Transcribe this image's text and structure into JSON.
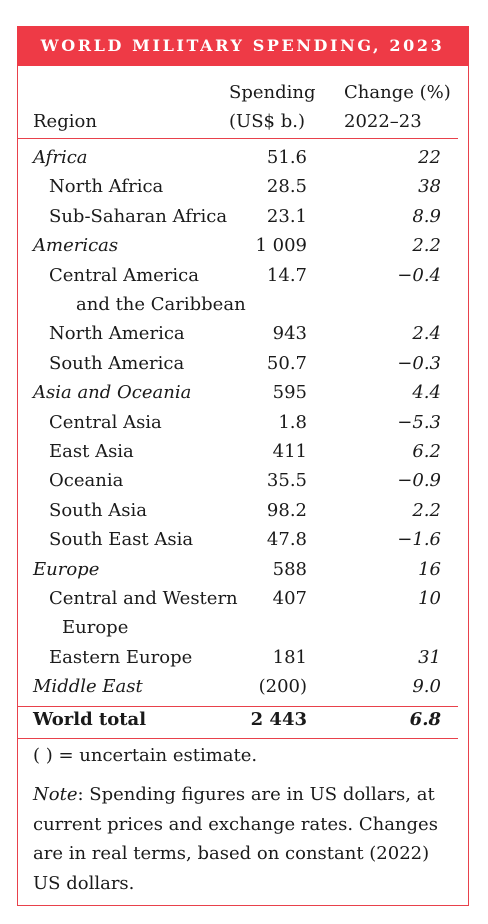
{
  "title": "WORLD MILITARY SPENDING, 2023",
  "headers": {
    "region": "Region",
    "spending_line1": "Spending",
    "spending_line2": "(US$ b.)",
    "change_line1": "Change (%)",
    "change_line2": "2022–23"
  },
  "rows": [
    {
      "label": "Africa",
      "spending": "51.6",
      "change": "22",
      "level": 0
    },
    {
      "label": "North Africa",
      "spending": "28.5",
      "change": "38",
      "level": 1
    },
    {
      "label": "Sub-Saharan Africa",
      "spending": "23.1",
      "change": "8.9",
      "level": 1
    },
    {
      "label": "Americas",
      "spending": "1 009",
      "change": "2.2",
      "level": 0
    },
    {
      "label": "Central America",
      "label2": "and the Caribbean",
      "spending": "14.7",
      "change": "−0.4",
      "level": 1
    },
    {
      "label": "North America",
      "spending": "943",
      "change": "2.4",
      "level": 1
    },
    {
      "label": "South America",
      "spending": "50.7",
      "change": "−0.3",
      "level": 1
    },
    {
      "label": "Asia and Oceania",
      "spending": "595",
      "change": "4.4",
      "level": 0
    },
    {
      "label": "Central Asia",
      "spending": "1.8",
      "change": "−5.3",
      "level": 1
    },
    {
      "label": "East Asia",
      "spending": "411",
      "change": "6.2",
      "level": 1
    },
    {
      "label": "Oceania",
      "spending": "35.5",
      "change": "−0.9",
      "level": 1
    },
    {
      "label": "South Asia",
      "spending": "98.2",
      "change": "2.2",
      "level": 1
    },
    {
      "label": "South East Asia",
      "spending": "47.8",
      "change": "−1.6",
      "level": 1
    },
    {
      "label": "Europe",
      "spending": "588",
      "change": "16",
      "level": 0
    },
    {
      "label": "Central and Western",
      "label2": "Europe",
      "spending": "407",
      "change": "10",
      "level": 1
    },
    {
      "label": "Eastern Europe",
      "spending": "181",
      "change": "31",
      "level": 1
    },
    {
      "label": "Middle East",
      "spending": "(200)",
      "change": "9.0",
      "level": 0
    }
  ],
  "total": {
    "label": "World total",
    "spending": "2 443",
    "change": "6.8"
  },
  "legend": "( ) = uncertain estimate.",
  "note_label": "Note",
  "note_text": ": Spending figures are in US dollars, at current prices and exchange rates. Changes are in real terms, based on constant (2022) US dollars.",
  "colors": {
    "accent": "#ee3a46",
    "rule": "#e8414b",
    "text": "#1a1a1a"
  }
}
